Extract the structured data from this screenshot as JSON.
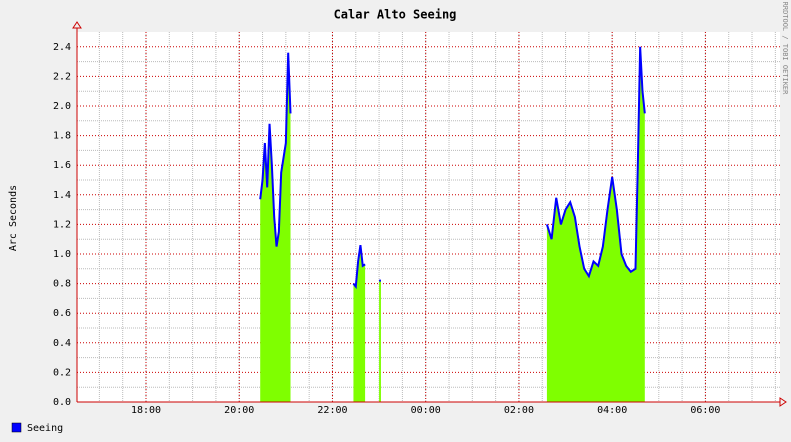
{
  "chart_data": {
    "type": "area-line",
    "title": "Calar Alto Seeing",
    "y_label": "Arc Seconds",
    "watermark": "RRDTOOL / TOBI OETIKER",
    "x": [
      20.45,
      20.5,
      20.55,
      20.6,
      20.65,
      20.7,
      20.75,
      20.8,
      20.85,
      20.9,
      20.95,
      21.0,
      21.05,
      21.1,
      21.5,
      22.45,
      22.5,
      22.55,
      22.6,
      22.65,
      22.7,
      22.85,
      23.0,
      23.04,
      25.0,
      26.6,
      26.7,
      26.8,
      26.9,
      27.0,
      27.1,
      27.2,
      27.3,
      27.4,
      27.5,
      27.6,
      27.7,
      27.8,
      27.9,
      28.0,
      28.1,
      28.2,
      28.3,
      28.4,
      28.5,
      28.55,
      28.6,
      28.65,
      28.7
    ],
    "series": [
      {
        "name": "Seeing",
        "color": "#0000ff",
        "area_color": "#7fff00",
        "values": [
          1.37,
          1.5,
          1.75,
          1.45,
          1.88,
          1.6,
          1.25,
          1.05,
          1.15,
          1.55,
          1.65,
          1.75,
          2.36,
          1.95,
          null,
          0.8,
          0.78,
          0.95,
          1.06,
          0.92,
          0.93,
          null,
          0.82,
          0.82,
          null,
          1.2,
          1.1,
          1.38,
          1.2,
          1.3,
          1.35,
          1.25,
          1.05,
          0.9,
          0.85,
          0.95,
          0.92,
          1.05,
          1.3,
          1.52,
          1.3,
          1.0,
          0.92,
          0.88,
          0.9,
          1.6,
          2.4,
          2.1,
          1.95
        ]
      }
    ],
    "xlim": [
      16.52,
      31.6
    ],
    "xticks": [
      {
        "value": 18,
        "label": "18:00"
      },
      {
        "value": 20,
        "label": "20:00"
      },
      {
        "value": 22,
        "label": "22:00"
      },
      {
        "value": 24,
        "label": "00:00"
      },
      {
        "value": 26,
        "label": "02:00"
      },
      {
        "value": 28,
        "label": "04:00"
      },
      {
        "value": 30,
        "label": "06:00"
      }
    ],
    "ylim": [
      0,
      2.5
    ],
    "yticks": [
      {
        "value": 0,
        "label": "0.0"
      },
      {
        "value": 0.2,
        "label": "0.2"
      },
      {
        "value": 0.4,
        "label": "0.4"
      },
      {
        "value": 0.6,
        "label": "0.6"
      },
      {
        "value": 0.8,
        "label": "0.8"
      },
      {
        "value": 1,
        "label": "1.0"
      },
      {
        "value": 1.2,
        "label": "1.2"
      },
      {
        "value": 1.4,
        "label": "1.4"
      },
      {
        "value": 1.6,
        "label": "1.6"
      },
      {
        "value": 1.8,
        "label": "1.8"
      },
      {
        "value": 2,
        "label": "2.0"
      },
      {
        "value": 2.2,
        "label": "2.2"
      },
      {
        "value": 2.4,
        "label": "2.4"
      }
    ],
    "grid": true
  }
}
